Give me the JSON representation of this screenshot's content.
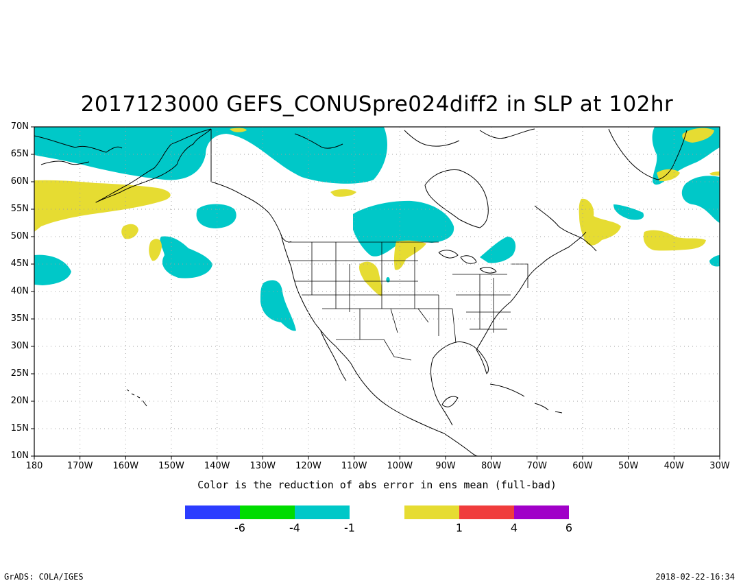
{
  "title": "2017123000 GEFS_CONUSpre024diff2 in SLP at 102hr",
  "lat_labels": [
    "70N",
    "65N",
    "60N",
    "55N",
    "50N",
    "45N",
    "40N",
    "35N",
    "30N",
    "25N",
    "20N",
    "15N",
    "10N"
  ],
  "lon_labels": [
    "180",
    "170W",
    "160W",
    "150W",
    "140W",
    "130W",
    "120W",
    "110W",
    "100W",
    "90W",
    "80W",
    "70W",
    "60W",
    "50W",
    "40W",
    "30W"
  ],
  "colorbar": {
    "caption": "Color is the reduction of abs error in ens mean (full-bad)",
    "swatch_colors": [
      "#2b3cff",
      "#00dc00",
      "#00c8c8",
      "#ffffff",
      "#e6dc32",
      "#f03c3c",
      "#a000c8"
    ],
    "tick_labels": [
      "-6",
      "-4",
      "-1",
      "1",
      "4",
      "6"
    ]
  },
  "colors": {
    "cyan": "#00c8c8",
    "yellow": "#e6dc32",
    "coast": "#000000",
    "grid": "#a0a0a0"
  },
  "footer": {
    "left": "GrADS: COLA/IGES",
    "right": "2018-02-22-16:34"
  }
}
